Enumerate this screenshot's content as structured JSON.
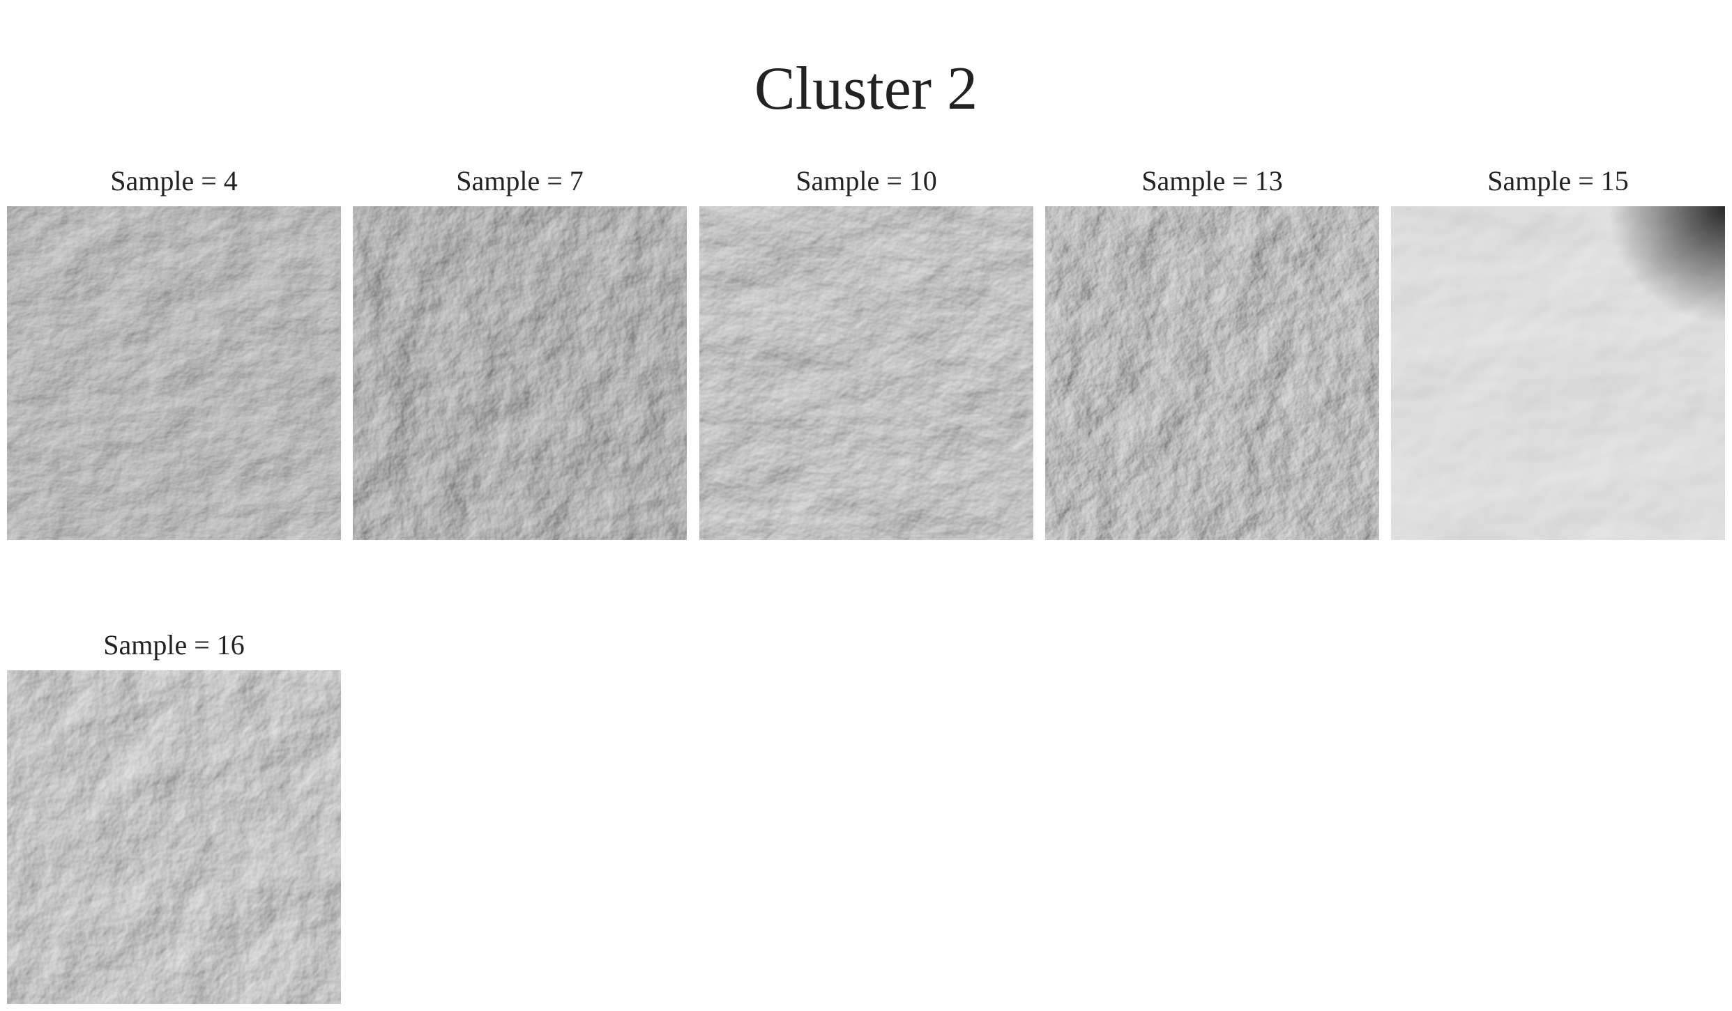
{
  "title": "Cluster 2",
  "panels": [
    {
      "label": "Sample = 4"
    },
    {
      "label": "Sample = 7"
    },
    {
      "label": "Sample = 10"
    },
    {
      "label": "Sample = 13"
    },
    {
      "label": "Sample = 15"
    },
    {
      "label": "Sample = 16"
    }
  ],
  "style": {
    "text_color": "#222222",
    "background": "#ffffff",
    "texture_light": "#eeeeee",
    "texture_dark": "#1e1e1e"
  }
}
